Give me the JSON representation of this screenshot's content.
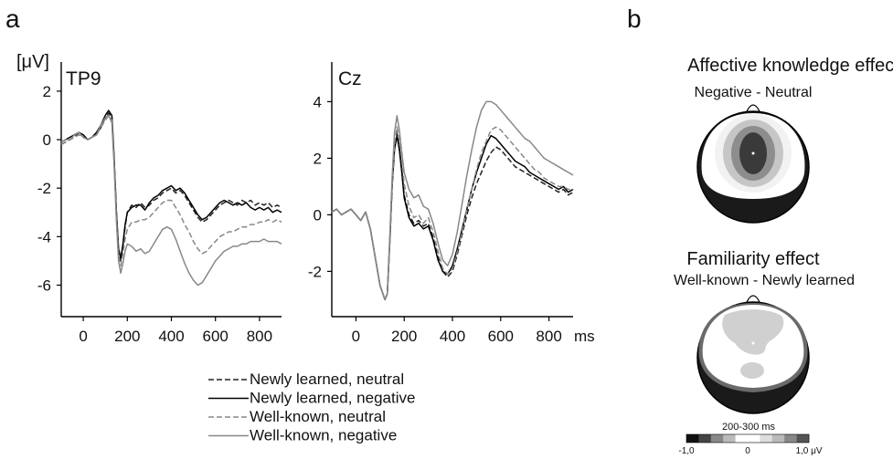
{
  "panels": {
    "a": "a",
    "b": "b"
  },
  "chart_data": [
    {
      "type": "line",
      "title": "TP9",
      "ylabel": "[μV]",
      "xlabel": "",
      "xlim": [
        -100,
        900
      ],
      "ylim": [
        -7.3,
        3.2
      ],
      "xticks": [
        0,
        200,
        400,
        600,
        800
      ],
      "yticks": [
        2,
        0,
        -2,
        -4,
        -6
      ],
      "series": [
        {
          "name": "Newly learned, neutral",
          "style": "dashed",
          "color": "#222222",
          "x": [
            -100,
            -80,
            -60,
            -40,
            -20,
            0,
            20,
            40,
            60,
            80,
            100,
            115,
            130,
            140,
            150,
            160,
            170,
            180,
            190,
            200,
            220,
            240,
            260,
            280,
            300,
            320,
            340,
            360,
            380,
            400,
            420,
            440,
            460,
            480,
            500,
            520,
            540,
            560,
            580,
            600,
            620,
            640,
            660,
            680,
            700,
            720,
            740,
            760,
            780,
            800,
            820,
            840,
            860,
            880,
            900
          ],
          "y": [
            -0.2,
            -0.1,
            0.0,
            0.1,
            0.3,
            0.1,
            0.0,
            0.1,
            0.2,
            0.5,
            0.9,
            1.1,
            0.9,
            -0.8,
            -3.0,
            -4.6,
            -5.0,
            -4.4,
            -3.6,
            -3.0,
            -2.7,
            -2.8,
            -2.6,
            -2.8,
            -2.7,
            -2.5,
            -2.4,
            -2.2,
            -2.1,
            -2.0,
            -2.2,
            -2.1,
            -2.3,
            -2.6,
            -2.9,
            -3.2,
            -3.4,
            -3.3,
            -3.1,
            -2.9,
            -2.7,
            -2.6,
            -2.5,
            -2.6,
            -2.7,
            -2.5,
            -2.6,
            -2.5,
            -2.7,
            -2.6,
            -2.7,
            -2.6,
            -2.8,
            -2.7,
            -2.8
          ]
        },
        {
          "name": "Newly learned, negative",
          "style": "solid",
          "color": "#000000",
          "x": [
            -100,
            -80,
            -60,
            -40,
            -20,
            0,
            20,
            40,
            60,
            80,
            100,
            115,
            130,
            140,
            150,
            160,
            170,
            180,
            190,
            200,
            220,
            240,
            260,
            280,
            300,
            320,
            340,
            360,
            380,
            400,
            420,
            440,
            460,
            480,
            500,
            520,
            540,
            560,
            580,
            600,
            620,
            640,
            660,
            680,
            700,
            720,
            740,
            760,
            780,
            800,
            820,
            840,
            860,
            880,
            900
          ],
          "y": [
            -0.1,
            0.0,
            0.1,
            0.2,
            0.3,
            0.2,
            0.0,
            0.1,
            0.3,
            0.6,
            1.0,
            1.2,
            1.0,
            -0.7,
            -2.9,
            -4.5,
            -4.9,
            -4.3,
            -3.5,
            -3.0,
            -2.8,
            -2.7,
            -2.7,
            -2.9,
            -2.6,
            -2.4,
            -2.3,
            -2.1,
            -2.0,
            -1.9,
            -2.1,
            -2.0,
            -2.2,
            -2.5,
            -2.8,
            -3.1,
            -3.3,
            -3.2,
            -3.0,
            -2.8,
            -2.6,
            -2.5,
            -2.6,
            -2.7,
            -2.6,
            -2.7,
            -2.6,
            -2.8,
            -2.9,
            -2.8,
            -2.9,
            -2.8,
            -3.0,
            -2.9,
            -3.0
          ]
        },
        {
          "name": "Well-known, neutral",
          "style": "dashed",
          "color": "#888888",
          "x": [
            -100,
            -80,
            -60,
            -40,
            -20,
            0,
            20,
            40,
            60,
            80,
            100,
            115,
            130,
            140,
            150,
            160,
            170,
            180,
            190,
            200,
            220,
            240,
            260,
            280,
            300,
            320,
            340,
            360,
            380,
            400,
            420,
            440,
            460,
            480,
            500,
            520,
            540,
            560,
            580,
            600,
            620,
            640,
            660,
            680,
            700,
            720,
            740,
            760,
            780,
            800,
            820,
            840,
            860,
            880,
            900
          ],
          "y": [
            -0.2,
            -0.1,
            0.0,
            0.1,
            0.2,
            0.1,
            0.0,
            0.1,
            0.2,
            0.5,
            0.8,
            1.0,
            0.8,
            -0.9,
            -3.1,
            -4.8,
            -5.2,
            -4.7,
            -4.1,
            -3.7,
            -3.4,
            -3.4,
            -3.3,
            -3.3,
            -3.2,
            -3.0,
            -2.8,
            -2.6,
            -2.5,
            -2.5,
            -2.8,
            -3.1,
            -3.5,
            -3.8,
            -4.2,
            -4.5,
            -4.7,
            -4.6,
            -4.4,
            -4.2,
            -4.0,
            -3.9,
            -3.8,
            -3.8,
            -3.7,
            -3.6,
            -3.6,
            -3.5,
            -3.5,
            -3.4,
            -3.4,
            -3.3,
            -3.4,
            -3.3,
            -3.4
          ]
        },
        {
          "name": "Well-known, negative",
          "style": "solid",
          "color": "#888888",
          "x": [
            -100,
            -80,
            -60,
            -40,
            -20,
            0,
            20,
            40,
            60,
            80,
            100,
            115,
            130,
            140,
            150,
            160,
            170,
            180,
            190,
            200,
            220,
            240,
            260,
            280,
            300,
            320,
            340,
            360,
            380,
            400,
            420,
            440,
            460,
            480,
            500,
            520,
            540,
            560,
            580,
            600,
            620,
            640,
            660,
            680,
            700,
            720,
            740,
            760,
            780,
            800,
            820,
            840,
            860,
            880,
            900
          ],
          "y": [
            -0.1,
            0.0,
            0.0,
            0.2,
            0.3,
            0.1,
            0.0,
            0.1,
            0.2,
            0.6,
            0.9,
            1.0,
            0.7,
            -1.0,
            -3.3,
            -5.0,
            -5.5,
            -5.1,
            -4.6,
            -4.3,
            -4.4,
            -4.6,
            -4.5,
            -4.7,
            -4.6,
            -4.3,
            -4.0,
            -3.7,
            -3.6,
            -3.7,
            -4.1,
            -4.6,
            -5.1,
            -5.5,
            -5.8,
            -6.0,
            -5.9,
            -5.6,
            -5.3,
            -5.0,
            -4.8,
            -4.6,
            -4.5,
            -4.4,
            -4.4,
            -4.3,
            -4.3,
            -4.2,
            -4.2,
            -4.2,
            -4.1,
            -4.2,
            -4.2,
            -4.2,
            -4.3
          ]
        }
      ]
    },
    {
      "type": "line",
      "title": "Cz",
      "ylabel": "",
      "xlabel": "ms",
      "xlim": [
        -100,
        900
      ],
      "ylim": [
        -3.6,
        5.4
      ],
      "xticks": [
        0,
        200,
        400,
        600,
        800
      ],
      "yticks": [
        4,
        2,
        0,
        -2
      ],
      "series": [
        {
          "name": "Newly learned, neutral",
          "style": "dashed",
          "color": "#222222",
          "x": [
            -100,
            -80,
            -60,
            -40,
            -20,
            0,
            20,
            40,
            60,
            80,
            100,
            120,
            130,
            140,
            150,
            160,
            170,
            180,
            190,
            200,
            220,
            240,
            260,
            280,
            300,
            320,
            340,
            360,
            380,
            400,
            420,
            440,
            460,
            480,
            500,
            520,
            540,
            560,
            580,
            600,
            620,
            640,
            660,
            680,
            700,
            720,
            740,
            760,
            780,
            800,
            820,
            840,
            860,
            880,
            900
          ],
          "y": [
            0.1,
            0.2,
            0.0,
            0.1,
            0.2,
            0.0,
            -0.2,
            0.1,
            -0.5,
            -1.5,
            -2.5,
            -3.0,
            -2.8,
            -1.0,
            1.0,
            2.4,
            2.9,
            2.4,
            1.6,
            0.7,
            0.0,
            -0.3,
            -0.2,
            -0.4,
            -0.3,
            -0.8,
            -1.5,
            -2.0,
            -2.2,
            -2.0,
            -1.4,
            -0.7,
            0.0,
            0.6,
            1.1,
            1.5,
            1.9,
            2.2,
            2.4,
            2.3,
            2.1,
            1.9,
            1.7,
            1.6,
            1.5,
            1.4,
            1.3,
            1.2,
            1.1,
            1.0,
            0.9,
            0.8,
            0.9,
            0.7,
            0.8
          ]
        },
        {
          "name": "Newly learned, negative",
          "style": "solid",
          "color": "#000000",
          "x": [
            -100,
            -80,
            -60,
            -40,
            -20,
            0,
            20,
            40,
            60,
            80,
            100,
            120,
            130,
            140,
            150,
            160,
            170,
            180,
            190,
            200,
            220,
            240,
            260,
            280,
            300,
            320,
            340,
            360,
            380,
            400,
            420,
            440,
            460,
            480,
            500,
            520,
            540,
            560,
            580,
            600,
            620,
            640,
            660,
            680,
            700,
            720,
            740,
            760,
            780,
            800,
            820,
            840,
            860,
            880,
            900
          ],
          "y": [
            0.1,
            0.2,
            0.0,
            0.1,
            0.2,
            0.0,
            -0.2,
            0.1,
            -0.5,
            -1.5,
            -2.5,
            -3.0,
            -2.8,
            -1.0,
            1.0,
            2.3,
            2.8,
            2.3,
            1.5,
            0.6,
            -0.1,
            -0.4,
            -0.3,
            -0.5,
            -0.4,
            -0.9,
            -1.6,
            -2.0,
            -2.1,
            -1.8,
            -1.2,
            -0.5,
            0.2,
            0.9,
            1.5,
            2.0,
            2.5,
            2.8,
            2.7,
            2.5,
            2.3,
            2.1,
            1.9,
            1.8,
            1.7,
            1.5,
            1.4,
            1.3,
            1.2,
            1.1,
            1.0,
            0.9,
            1.0,
            0.8,
            0.9
          ]
        },
        {
          "name": "Well-known, neutral",
          "style": "dashed",
          "color": "#888888",
          "x": [
            -100,
            -80,
            -60,
            -40,
            -20,
            0,
            20,
            40,
            60,
            80,
            100,
            120,
            130,
            140,
            150,
            160,
            170,
            180,
            190,
            200,
            220,
            240,
            260,
            280,
            300,
            320,
            340,
            360,
            380,
            400,
            420,
            440,
            460,
            480,
            500,
            520,
            540,
            560,
            580,
            600,
            620,
            640,
            660,
            680,
            700,
            720,
            740,
            760,
            780,
            800,
            820,
            840,
            860,
            880,
            900
          ],
          "y": [
            0.1,
            0.2,
            0.0,
            0.1,
            0.2,
            0.0,
            -0.2,
            0.1,
            -0.5,
            -1.5,
            -2.5,
            -3.0,
            -2.8,
            -1.0,
            1.0,
            2.5,
            3.1,
            2.7,
            1.9,
            1.1,
            0.3,
            -0.1,
            0.0,
            -0.3,
            -0.1,
            -0.6,
            -1.3,
            -1.9,
            -2.1,
            -1.9,
            -1.3,
            -0.6,
            0.2,
            0.9,
            1.6,
            2.2,
            2.6,
            3.0,
            3.1,
            3.0,
            2.8,
            2.6,
            2.4,
            2.2,
            2.0,
            1.8,
            1.6,
            1.5,
            1.3,
            1.2,
            1.1,
            1.0,
            1.0,
            0.9,
            0.9
          ]
        },
        {
          "name": "Well-known, negative",
          "style": "solid",
          "color": "#888888",
          "x": [
            -100,
            -80,
            -60,
            -40,
            -20,
            0,
            20,
            40,
            60,
            80,
            100,
            120,
            130,
            140,
            150,
            160,
            170,
            180,
            190,
            200,
            220,
            240,
            260,
            280,
            300,
            320,
            340,
            360,
            380,
            400,
            420,
            440,
            460,
            480,
            500,
            520,
            540,
            560,
            580,
            600,
            620,
            640,
            660,
            680,
            700,
            720,
            740,
            760,
            780,
            800,
            820,
            840,
            860,
            880,
            900
          ],
          "y": [
            0.1,
            0.2,
            0.0,
            0.1,
            0.2,
            0.0,
            -0.2,
            0.1,
            -0.5,
            -1.5,
            -2.5,
            -3.0,
            -2.8,
            -0.8,
            1.3,
            2.9,
            3.5,
            3.0,
            2.2,
            1.5,
            0.9,
            0.6,
            0.7,
            0.3,
            0.2,
            -0.3,
            -1.0,
            -1.6,
            -1.8,
            -1.4,
            -0.6,
            0.4,
            1.4,
            2.3,
            3.1,
            3.7,
            4.0,
            4.0,
            3.9,
            3.7,
            3.5,
            3.3,
            3.1,
            2.9,
            2.7,
            2.6,
            2.4,
            2.2,
            2.0,
            1.9,
            1.8,
            1.7,
            1.6,
            1.5,
            1.4
          ]
        }
      ]
    }
  ],
  "legend": [
    {
      "label": "Newly learned, neutral",
      "style": "dashed",
      "color": "#222222"
    },
    {
      "label": "Newly learned, negative",
      "style": "solid",
      "color": "#000000"
    },
    {
      "label": "Well-known, neutral",
      "style": "dashed",
      "color": "#888888"
    },
    {
      "label": "Well-known, negative",
      "style": "solid",
      "color": "#888888"
    }
  ],
  "topomaps": [
    {
      "title": "Affective knowledge effect",
      "subtitle": "Negative - Neutral"
    },
    {
      "title": "Familiarity effect",
      "subtitle": "Well-known - Newly learned"
    }
  ],
  "colorbar": {
    "time_window": "200-300 ms",
    "labels": [
      "-1,0",
      "0",
      "1,0 μV"
    ],
    "range": [
      -1.0,
      1.0
    ],
    "colors": [
      "#111111",
      "#444444",
      "#888888",
      "#bbbbbb",
      "#ffffff",
      "#ffffff",
      "#dddddd",
      "#bbbbbb",
      "#888888",
      "#555555"
    ]
  }
}
